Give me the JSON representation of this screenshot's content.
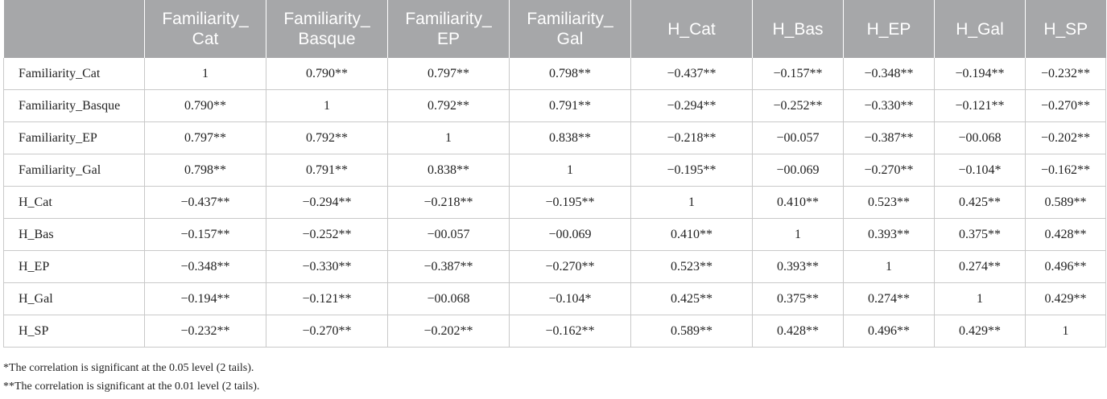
{
  "table": {
    "headers": [
      [
        ""
      ],
      [
        "Familiarity_",
        "Cat"
      ],
      [
        "Familiarity_",
        "Basque"
      ],
      [
        "Familiarity_",
        "EP"
      ],
      [
        "Familiarity_",
        "Gal"
      ],
      [
        "H_Cat"
      ],
      [
        "H_Bas"
      ],
      [
        "H_EP"
      ],
      [
        "H_Gal"
      ],
      [
        "H_SP"
      ]
    ],
    "rows": [
      [
        "Familiarity_Cat",
        "1",
        "0.790**",
        "0.797**",
        "0.798**",
        "−0.437**",
        "−0.157**",
        "−0.348**",
        "−0.194**",
        "−0.232**"
      ],
      [
        "Familiarity_Basque",
        "0.790**",
        "1",
        "0.792**",
        "0.791**",
        "−0.294**",
        "−0.252**",
        "−0.330**",
        "−0.121**",
        "−0.270**"
      ],
      [
        "Familiarity_EP",
        "0.797**",
        "0.792**",
        "1",
        "0.838**",
        "−0.218**",
        "−00.057",
        "−0.387**",
        "−00.068",
        "−0.202**"
      ],
      [
        "Familiarity_Gal",
        "0.798**",
        "0.791**",
        "0.838**",
        "1",
        "−0.195**",
        "−00.069",
        "−0.270**",
        "−0.104*",
        "−0.162**"
      ],
      [
        "H_Cat",
        "−0.437**",
        "−0.294**",
        "−0.218**",
        "−0.195**",
        "1",
        "0.410**",
        "0.523**",
        "0.425**",
        "0.589**"
      ],
      [
        "H_Bas",
        "−0.157**",
        "−0.252**",
        "−00.057",
        "−00.069",
        "0.410**",
        "1",
        "0.393**",
        "0.375**",
        "0.428**"
      ],
      [
        "H_EP",
        "−0.348**",
        "−0.330**",
        "−0.387**",
        "−0.270**",
        "0.523**",
        "0.393**",
        "1",
        "0.274**",
        "0.496**"
      ],
      [
        "H_Gal",
        "−0.194**",
        "−0.121**",
        "−00.068",
        "−0.104*",
        "0.425**",
        "0.375**",
        "0.274**",
        "1",
        "0.429**"
      ],
      [
        "H_SP",
        "−0.232**",
        "−0.270**",
        "−0.202**",
        "−0.162**",
        "0.589**",
        "0.428**",
        "0.496**",
        "0.429**",
        "1"
      ]
    ]
  },
  "footnotes": [
    "*The correlation is significant at the 0.05 level (2 tails).",
    "**The correlation is significant at the 0.01 level (2 tails)."
  ],
  "colors": {
    "header_bg": "#a6a7a9",
    "header_text": "#ffffff",
    "grid": "#c9c9c9"
  }
}
